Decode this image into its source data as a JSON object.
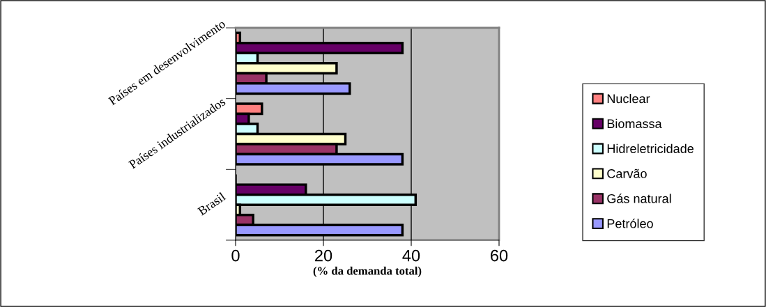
{
  "chart_data": {
    "type": "bar",
    "orientation": "horizontal",
    "xlabel": "(% da demanda total)",
    "categories": [
      "Países em desenvolvimento",
      "Países industrializados",
      "Brasil"
    ],
    "series": [
      {
        "name": "Nuclear",
        "color": "#ff8080",
        "values": [
          1,
          6,
          0
        ]
      },
      {
        "name": "Biomassa",
        "color": "#660066",
        "values": [
          38,
          3,
          16
        ]
      },
      {
        "name": "Hidreletricidade",
        "color": "#ccffff",
        "values": [
          5,
          5,
          41
        ]
      },
      {
        "name": "Carvão",
        "color": "#ffffcc",
        "values": [
          23,
          25,
          1
        ]
      },
      {
        "name": "Gás natural",
        "color": "#993366",
        "values": [
          7,
          23,
          4
        ]
      },
      {
        "name": "Petróleo",
        "color": "#9999ff",
        "values": [
          26,
          38,
          38
        ]
      }
    ],
    "xlim": [
      0,
      60
    ],
    "xticks": [
      0,
      20,
      40,
      60
    ],
    "grid": "x",
    "legend": "right"
  }
}
